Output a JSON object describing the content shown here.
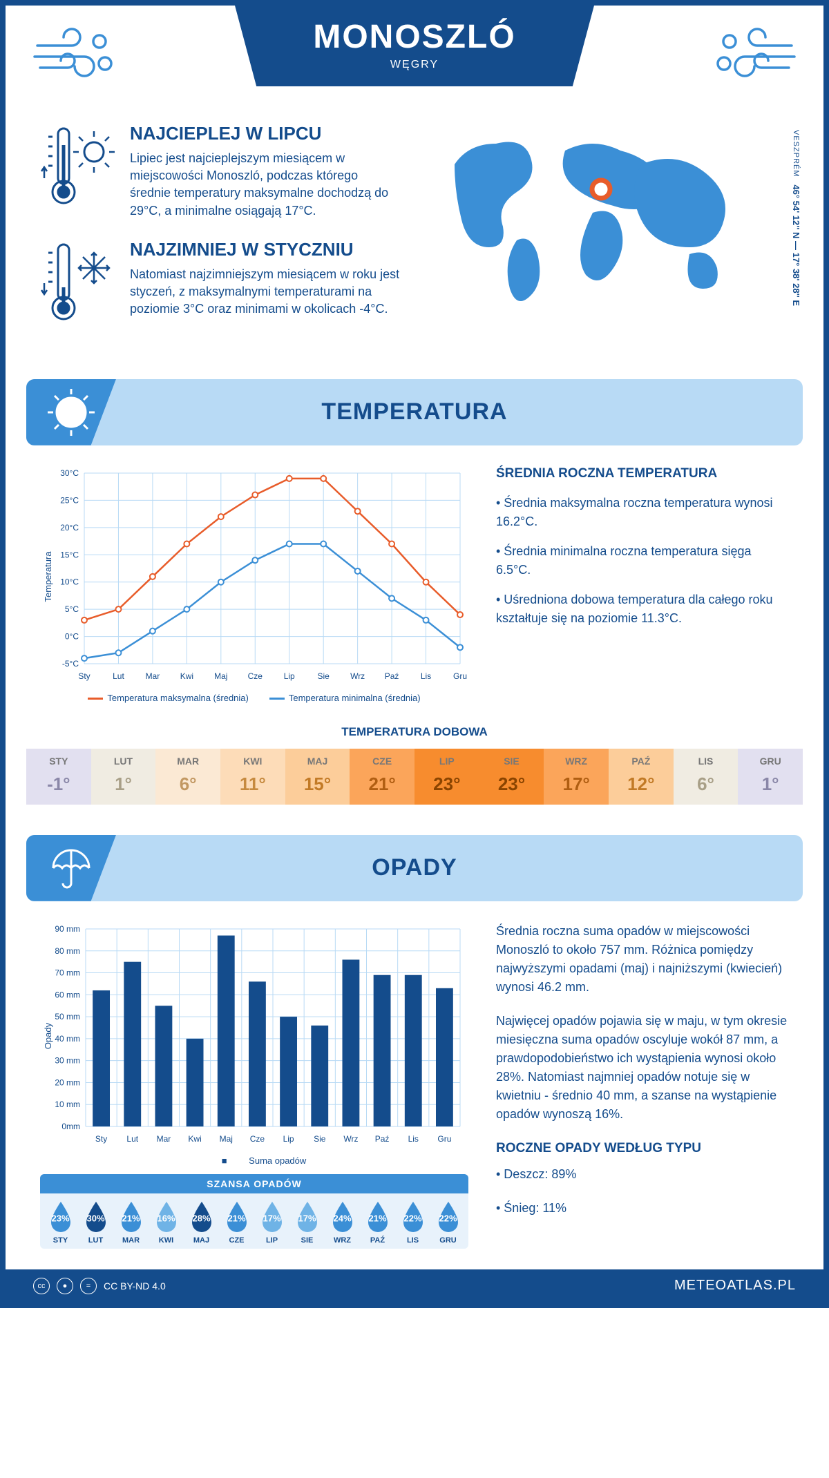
{
  "header": {
    "title": "MONOSZLÓ",
    "subtitle": "WĘGRY"
  },
  "coords": {
    "lat": "46° 54' 12'' N",
    "lon": "17° 38' 28'' E",
    "region": "VESZPRÉM"
  },
  "intro": {
    "warm": {
      "title": "NAJCIEPLEJ W LIPCU",
      "text": "Lipiec jest najcieplejszym miesiącem w miejscowości Monoszló, podczas którego średnie temperatury maksymalne dochodzą do 29°C, a minimalne osiągają 17°C."
    },
    "cold": {
      "title": "NAJZIMNIEJ W STYCZNIU",
      "text": "Natomiast najzimniejszym miesiącem w roku jest styczeń, z maksymalnymi temperaturami na poziomie 3°C oraz minimami w okolicach -4°C."
    }
  },
  "sections": {
    "temperature": "TEMPERATURA",
    "precip": "OPADY"
  },
  "months": [
    "Sty",
    "Lut",
    "Mar",
    "Kwi",
    "Maj",
    "Cze",
    "Lip",
    "Sie",
    "Wrz",
    "Paź",
    "Lis",
    "Gru"
  ],
  "months_upper": [
    "STY",
    "LUT",
    "MAR",
    "KWI",
    "MAJ",
    "CZE",
    "LIP",
    "SIE",
    "WRZ",
    "PAŹ",
    "LIS",
    "GRU"
  ],
  "temp_chart": {
    "type": "line",
    "ylabel": "Temperatura",
    "ylim": [
      -5,
      30
    ],
    "ytick_step": 5,
    "yticks": [
      "-5°C",
      "0°C",
      "5°C",
      "10°C",
      "15°C",
      "20°C",
      "25°C",
      "30°C"
    ],
    "max_color": "#e85c2a",
    "min_color": "#3b8fd6",
    "grid_color": "#b8daf5",
    "series": {
      "max": [
        3,
        5,
        11,
        17,
        22,
        26,
        29,
        29,
        23,
        17,
        10,
        4
      ],
      "min": [
        -4,
        -3,
        1,
        5,
        10,
        14,
        17,
        17,
        12,
        7,
        3,
        -2
      ]
    },
    "legend": {
      "max": "Temperatura maksymalna (średnia)",
      "min": "Temperatura minimalna (średnia)"
    }
  },
  "temp_side": {
    "title": "ŚREDNIA ROCZNA TEMPERATURA",
    "b1": "• Średnia maksymalna roczna temperatura wynosi 16.2°C.",
    "b2": "• Średnia minimalna roczna temperatura sięga 6.5°C.",
    "b3": "• Uśredniona dobowa temperatura dla całego roku kształtuje się na poziomie 11.3°C."
  },
  "daily": {
    "title": "TEMPERATURA DOBOWA",
    "values": [
      "-1°",
      "1°",
      "6°",
      "11°",
      "15°",
      "21°",
      "23°",
      "23°",
      "17°",
      "12°",
      "6°",
      "1°"
    ],
    "bg_colors": [
      "#e2e0f0",
      "#f0ece2",
      "#fbe9d4",
      "#fddcb8",
      "#fccd9a",
      "#fba55a",
      "#f78c2e",
      "#f78c2e",
      "#fba55a",
      "#fccd9a",
      "#f0ece2",
      "#e2e0f0"
    ],
    "text_colors": [
      "#8a87a8",
      "#a89f87",
      "#c29862",
      "#c68a3f",
      "#c27a26",
      "#b05e12",
      "#8a4400",
      "#8a4400",
      "#b05e12",
      "#c27a26",
      "#a89f87",
      "#8a87a8"
    ]
  },
  "precip_chart": {
    "type": "bar",
    "ylabel": "Opady",
    "ylim": [
      0,
      90
    ],
    "ytick_step": 10,
    "yticks": [
      "0mm",
      "10 mm",
      "20 mm",
      "30 mm",
      "40 mm",
      "50 mm",
      "60 mm",
      "70 mm",
      "80 mm",
      "90 mm"
    ],
    "bar_color": "#144c8c",
    "grid_color": "#b8daf5",
    "values": [
      62,
      75,
      55,
      40,
      87,
      66,
      50,
      46,
      76,
      69,
      69,
      63
    ],
    "legend": "Suma opadów"
  },
  "precip_side": {
    "p1": "Średnia roczna suma opadów w miejscowości Monoszló to około 757 mm. Różnica pomiędzy najwyższymi opadami (maj) i najniższymi (kwiecień) wynosi 46.2 mm.",
    "p2": "Najwięcej opadów pojawia się w maju, w tym okresie miesięczna suma opadów oscyluje wokół 87 mm, a prawdopodobieństwo ich wystąpienia wynosi około 28%. Natomiast najmniej opadów notuje się w kwietniu - średnio 40 mm, a szanse na wystąpienie opadów wynoszą 16%.",
    "type_title": "ROCZNE OPADY WEDŁUG TYPU",
    "rain": "• Deszcz: 89%",
    "snow": "• Śnieg: 11%"
  },
  "chance": {
    "title": "SZANSA OPADÓW",
    "values": [
      "23%",
      "30%",
      "21%",
      "16%",
      "28%",
      "21%",
      "17%",
      "17%",
      "24%",
      "21%",
      "22%",
      "22%"
    ],
    "colors": [
      "#3b8fd6",
      "#144c8c",
      "#3b8fd6",
      "#6fb3e6",
      "#144c8c",
      "#3b8fd6",
      "#6fb3e6",
      "#6fb3e6",
      "#3b8fd6",
      "#3b8fd6",
      "#3b8fd6",
      "#3b8fd6"
    ]
  },
  "footer": {
    "license": "CC BY-ND 4.0",
    "site": "METEOATLAS.PL"
  }
}
